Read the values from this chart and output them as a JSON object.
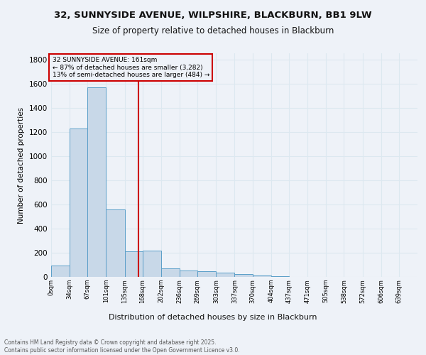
{
  "title": "32, SUNNYSIDE AVENUE, WILPSHIRE, BLACKBURN, BB1 9LW",
  "subtitle": "Size of property relative to detached houses in Blackburn",
  "xlabel": "Distribution of detached houses by size in Blackburn",
  "ylabel": "Number of detached properties",
  "footnote1": "Contains HM Land Registry data © Crown copyright and database right 2025.",
  "footnote2": "Contains public sector information licensed under the Open Government Licence v3.0.",
  "annotation_title": "32 SUNNYSIDE AVENUE: 161sqm",
  "annotation_line1": "← 87% of detached houses are smaller (3,282)",
  "annotation_line2": "13% of semi-detached houses are larger (484) →",
  "property_line_x": 161,
  "bar_edges": [
    0,
    34,
    67,
    101,
    135,
    168,
    202,
    236,
    269,
    303,
    337,
    370,
    404,
    437,
    471,
    505,
    538,
    572,
    606,
    639,
    673
  ],
  "bar_heights": [
    95,
    1230,
    1570,
    560,
    210,
    215,
    70,
    50,
    45,
    35,
    25,
    10,
    5,
    0,
    0,
    0,
    0,
    0,
    0,
    0
  ],
  "bar_color": "#c8d8e8",
  "bar_edge_color": "#5a9ec8",
  "annotation_box_color": "#cc0000",
  "vline_color": "#cc0000",
  "grid_color": "#dce8f0",
  "background_color": "#eef2f8",
  "ylim": [
    0,
    1850
  ],
  "yticks": [
    0,
    200,
    400,
    600,
    800,
    1000,
    1200,
    1400,
    1600,
    1800
  ]
}
